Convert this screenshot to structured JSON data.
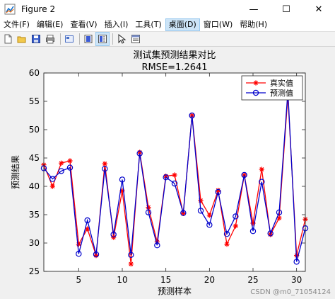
{
  "window": {
    "title": "Figure 2",
    "controls": {
      "minimize": "—",
      "maximize": "☐",
      "close": "✕"
    }
  },
  "menu": {
    "items": [
      "文件(F)",
      "编辑(E)",
      "查看(V)",
      "插入(I)",
      "工具(T)",
      "桌面(D)",
      "窗口(W)",
      "帮助(H)"
    ],
    "active_index": 5
  },
  "toolbar": {
    "buttons": [
      "new-figure-icon",
      "open-file-icon",
      "save-icon",
      "print-icon",
      "link-plot-icon",
      "colorbar-icon",
      "legend-icon",
      "pointer-icon",
      "property-inspector-icon"
    ]
  },
  "chart_data": {
    "type": "line",
    "title": "测试集预测结果对比",
    "subtitle": "RMSE=1.2641",
    "xlabel": "预测样本",
    "ylabel": "预测结果",
    "xlim": [
      1,
      31
    ],
    "ylim": [
      25,
      60
    ],
    "xticks": [
      5,
      10,
      15,
      20,
      25,
      30
    ],
    "yticks": [
      25,
      30,
      35,
      40,
      45,
      50,
      55,
      60
    ],
    "grid": false,
    "legend_position": "top-right",
    "x": [
      1,
      2,
      3,
      4,
      5,
      6,
      7,
      8,
      9,
      10,
      11,
      12,
      13,
      14,
      15,
      16,
      17,
      18,
      19,
      20,
      21,
      22,
      23,
      24,
      25,
      26,
      27,
      28,
      29,
      30,
      31
    ],
    "series": [
      {
        "name": "真实值",
        "color": "#ff0000",
        "marker": "star",
        "values": [
          43.8,
          40.0,
          44.1,
          44.5,
          29.8,
          32.5,
          27.8,
          44.0,
          31.0,
          39.2,
          26.3,
          46.0,
          36.3,
          30.2,
          41.8,
          42.0,
          35.2,
          52.5,
          37.5,
          34.9,
          39.3,
          29.8,
          33.0,
          42.0,
          33.5,
          43.0,
          31.5,
          34.4,
          56.0,
          27.8,
          34.2
        ]
      },
      {
        "name": "预测值",
        "color": "#0000cc",
        "marker": "circle",
        "values": [
          43.2,
          41.3,
          42.7,
          43.3,
          28.1,
          34.0,
          28.0,
          43.1,
          31.5,
          41.2,
          27.9,
          45.8,
          35.4,
          29.6,
          41.6,
          40.5,
          35.3,
          52.5,
          35.7,
          33.2,
          39.0,
          31.6,
          34.7,
          42.0,
          32.1,
          40.8,
          31.7,
          35.4,
          56.8,
          26.7,
          32.6
        ]
      }
    ]
  },
  "watermark": "CSDN @m0_71054124"
}
